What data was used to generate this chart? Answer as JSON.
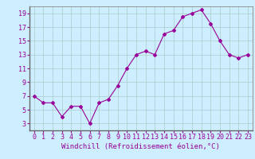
{
  "x": [
    0,
    1,
    2,
    3,
    4,
    5,
    6,
    7,
    8,
    9,
    10,
    11,
    12,
    13,
    14,
    15,
    16,
    17,
    18,
    19,
    20,
    21,
    22,
    23
  ],
  "y": [
    7,
    6,
    6,
    4,
    5.5,
    5.5,
    3,
    6,
    6.5,
    8.5,
    11,
    13,
    13.5,
    13,
    16,
    16.5,
    18.5,
    19,
    19.5,
    17.5,
    15,
    13,
    12.5,
    13
  ],
  "line_color": "#990099",
  "marker": "D",
  "marker_size": 2,
  "bg_color": "#cceeff",
  "grid_color": "#aacccc",
  "xlabel": "Windchill (Refroidissement éolien,°C)",
  "xlabel_color": "#990099",
  "tick_color": "#990099",
  "ylim": [
    2,
    20
  ],
  "yticks": [
    3,
    5,
    7,
    9,
    11,
    13,
    15,
    17,
    19
  ],
  "xlim": [
    -0.5,
    23.5
  ],
  "xticks": [
    0,
    1,
    2,
    3,
    4,
    5,
    6,
    7,
    8,
    9,
    10,
    11,
    12,
    13,
    14,
    15,
    16,
    17,
    18,
    19,
    20,
    21,
    22,
    23
  ],
  "xlabel_fontsize": 6.5,
  "tick_fontsize": 6.0,
  "spine_color": "#888888"
}
